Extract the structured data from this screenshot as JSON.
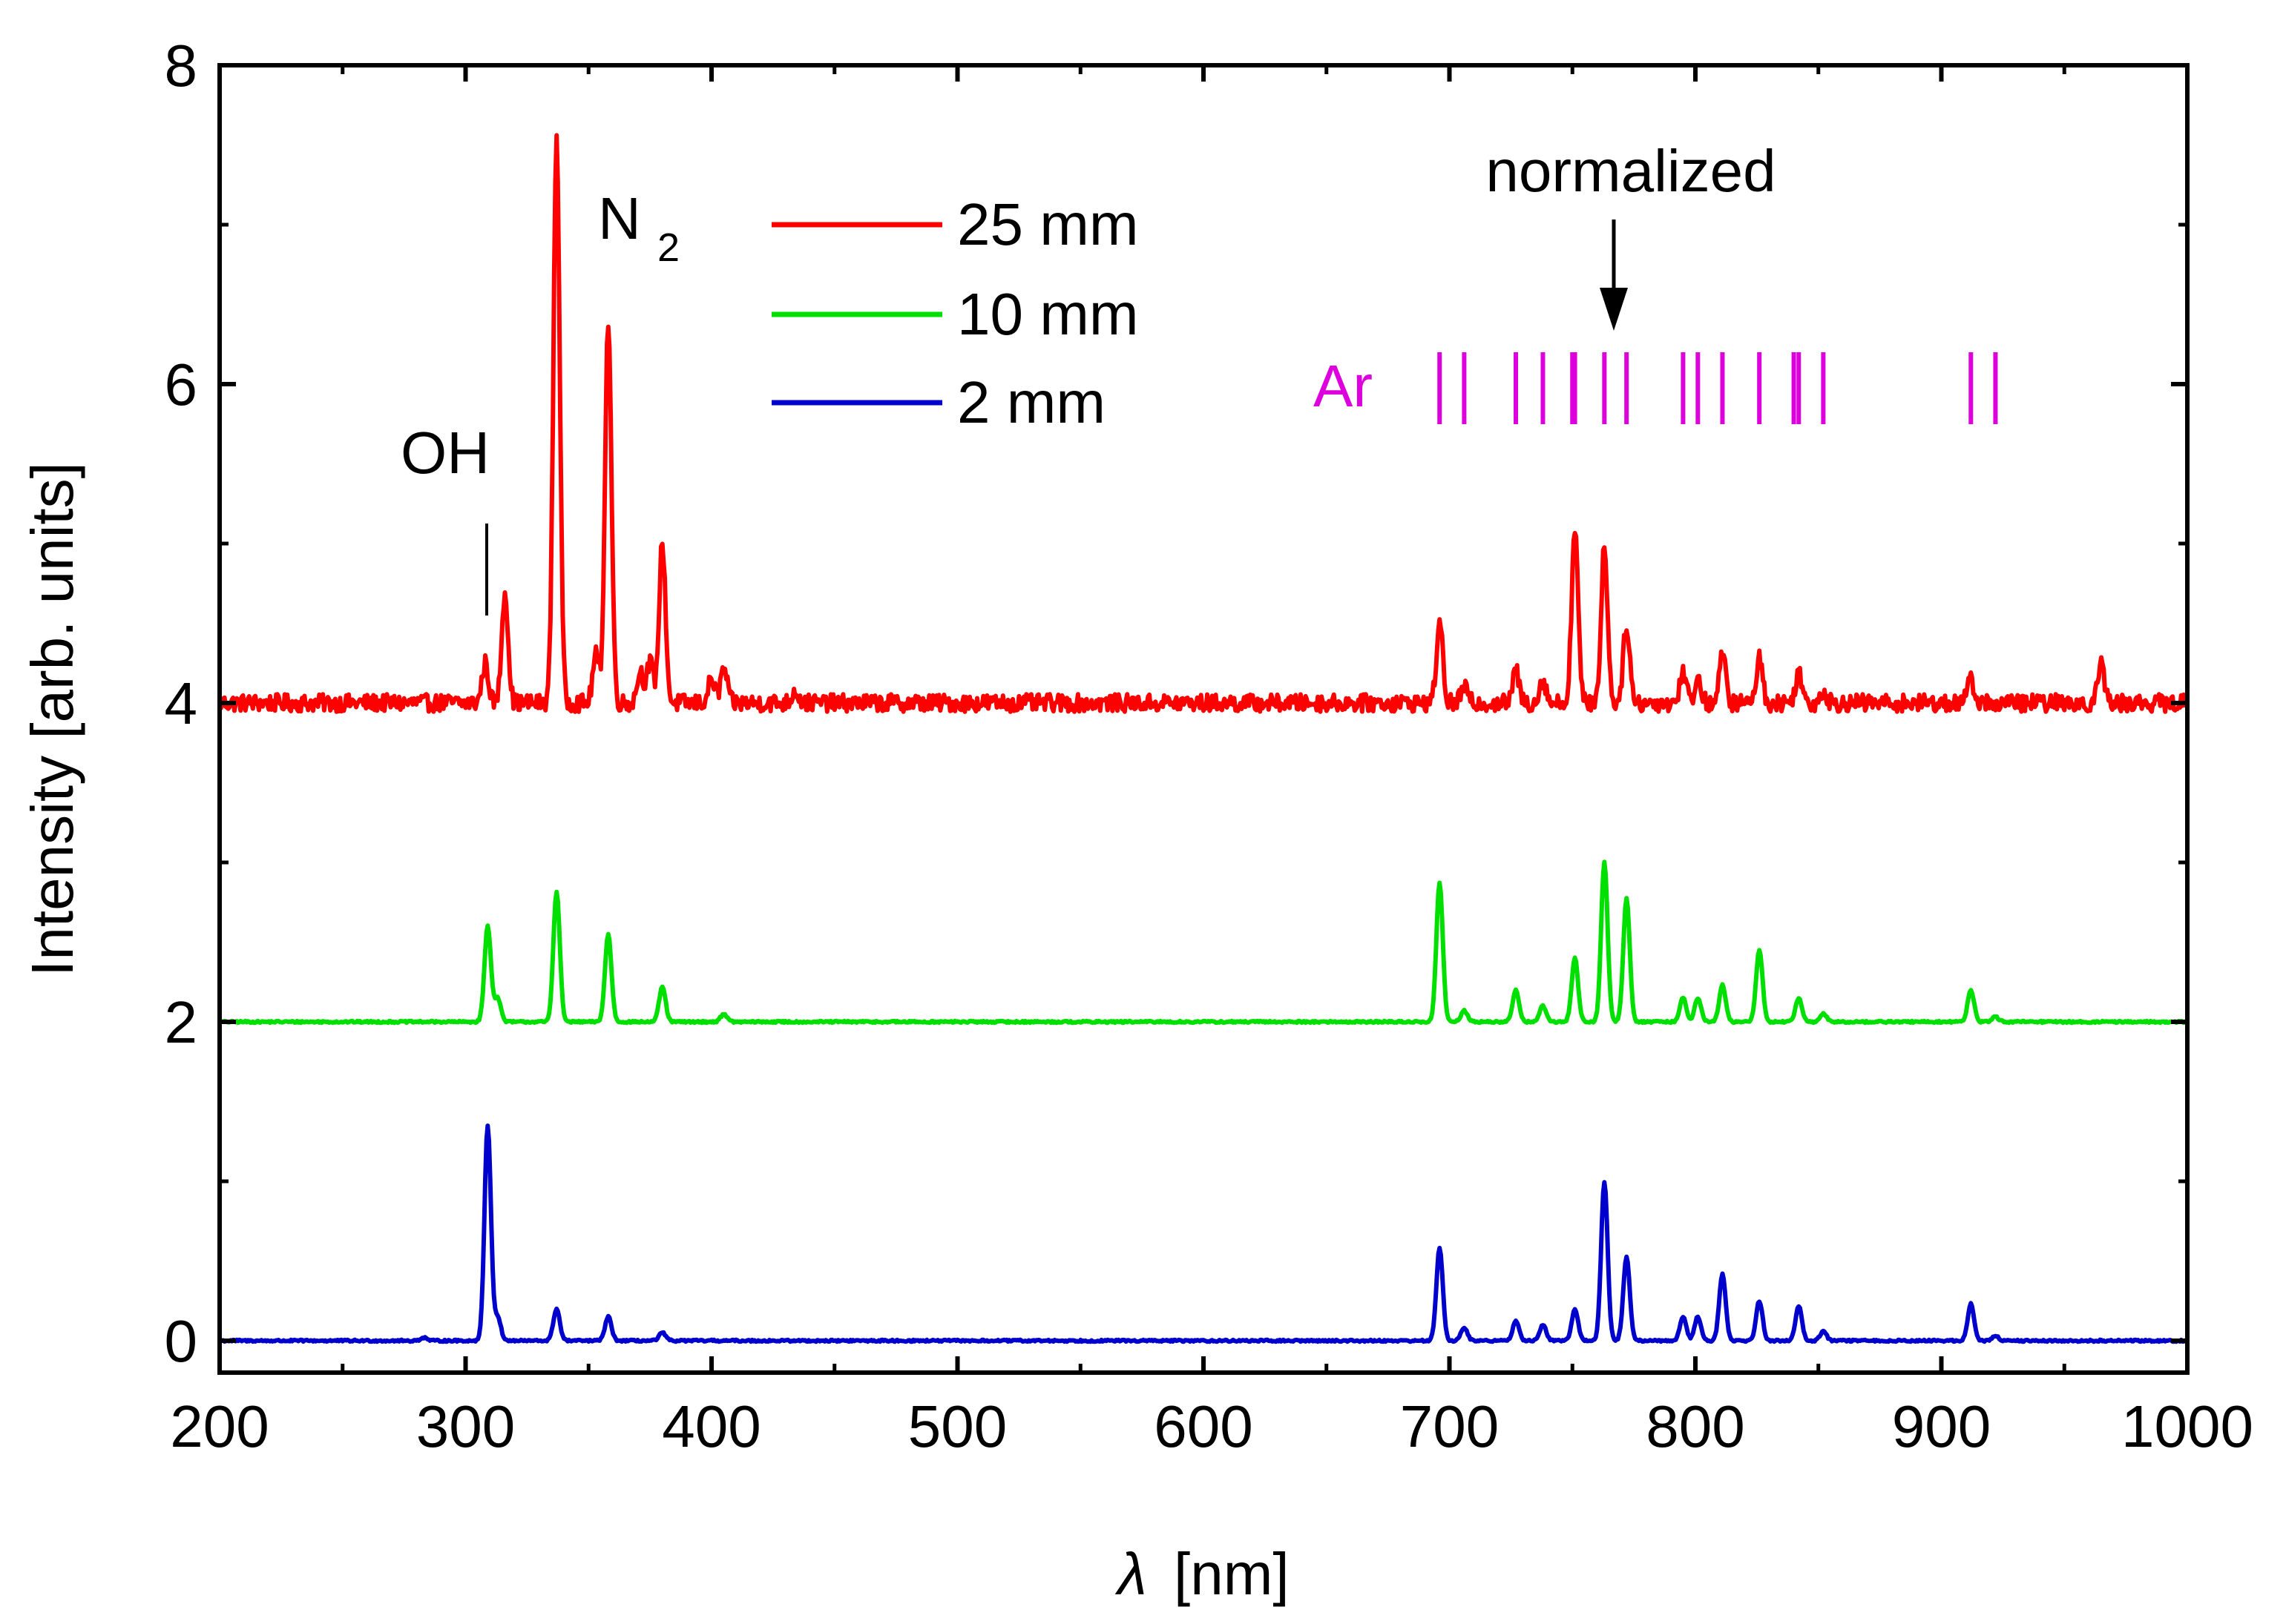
{
  "chart_data": {
    "type": "line",
    "title": "",
    "xlabel_symbol": "λ",
    "xlabel_unit": "[nm]",
    "ylabel": "Intensity [arb. units]",
    "xlim": [
      200,
      1000
    ],
    "ylim": [
      -0.2,
      8
    ],
    "xticks": [
      200,
      300,
      400,
      500,
      600,
      700,
      800,
      900,
      1000
    ],
    "yticks": [
      0,
      2,
      4,
      6,
      8
    ],
    "legend_position": "top-center",
    "series": [
      {
        "name": "25 mm",
        "color": "#ff0000",
        "baseline": 4.0,
        "peaks": [
          [
            308,
            0.25
          ],
          [
            316,
            0.7
          ],
          [
            337,
            3.55
          ],
          [
            353,
            0.3
          ],
          [
            358,
            2.4
          ],
          [
            371,
            0.2
          ],
          [
            375,
            0.25
          ],
          [
            380,
            1.0
          ],
          [
            400,
            0.15
          ],
          [
            405,
            0.22
          ],
          [
            434,
            0.08
          ],
          [
            696,
            0.5
          ],
          [
            706,
            0.1
          ],
          [
            727,
            0.2
          ],
          [
            738,
            0.15
          ],
          [
            751,
            1.1
          ],
          [
            763,
            0.98
          ],
          [
            772,
            0.5
          ],
          [
            795,
            0.2
          ],
          [
            801,
            0.15
          ],
          [
            811,
            0.3
          ],
          [
            826,
            0.28
          ],
          [
            842,
            0.2
          ],
          [
            852,
            0.08
          ],
          [
            912,
            0.15
          ],
          [
            965,
            0.25
          ]
        ]
      },
      {
        "name": "10 mm",
        "color": "#00e000",
        "baseline": 2.0,
        "peaks": [
          [
            309,
            0.6
          ],
          [
            313,
            0.15
          ],
          [
            337,
            0.82
          ],
          [
            358,
            0.55
          ],
          [
            380,
            0.22
          ],
          [
            405,
            0.05
          ],
          [
            696,
            0.87
          ],
          [
            706,
            0.07
          ],
          [
            727,
            0.2
          ],
          [
            738,
            0.1
          ],
          [
            751,
            0.4
          ],
          [
            763,
            1.0
          ],
          [
            772,
            0.78
          ],
          [
            795,
            0.15
          ],
          [
            801,
            0.15
          ],
          [
            811,
            0.23
          ],
          [
            826,
            0.45
          ],
          [
            842,
            0.15
          ],
          [
            852,
            0.05
          ],
          [
            912,
            0.2
          ],
          [
            922,
            0.03
          ]
        ]
      },
      {
        "name": "2 mm",
        "color": "#0000cc",
        "baseline": 0.0,
        "peaks": [
          [
            283,
            0.02
          ],
          [
            309,
            1.35
          ],
          [
            313,
            0.15
          ],
          [
            337,
            0.2
          ],
          [
            358,
            0.15
          ],
          [
            380,
            0.05
          ],
          [
            696,
            0.58
          ],
          [
            706,
            0.08
          ],
          [
            727,
            0.12
          ],
          [
            738,
            0.1
          ],
          [
            751,
            0.2
          ],
          [
            763,
            1.0
          ],
          [
            772,
            0.53
          ],
          [
            795,
            0.15
          ],
          [
            801,
            0.15
          ],
          [
            811,
            0.42
          ],
          [
            826,
            0.25
          ],
          [
            842,
            0.22
          ],
          [
            852,
            0.06
          ],
          [
            912,
            0.23
          ],
          [
            922,
            0.03
          ]
        ]
      }
    ],
    "ar_lines_nm": [
      696,
      706,
      727,
      738,
      750,
      751,
      763,
      772,
      795,
      801,
      811,
      826,
      840,
      842,
      852,
      912,
      922
    ],
    "ar_label": "Ar",
    "ar_color": "#dd00dd",
    "annotations": {
      "oh_label": "OH",
      "oh_wavelength": 309,
      "n2_label": "N",
      "n2_subscript": "2",
      "normalized_label": "normalized",
      "normalized_wavelength": 763
    }
  }
}
